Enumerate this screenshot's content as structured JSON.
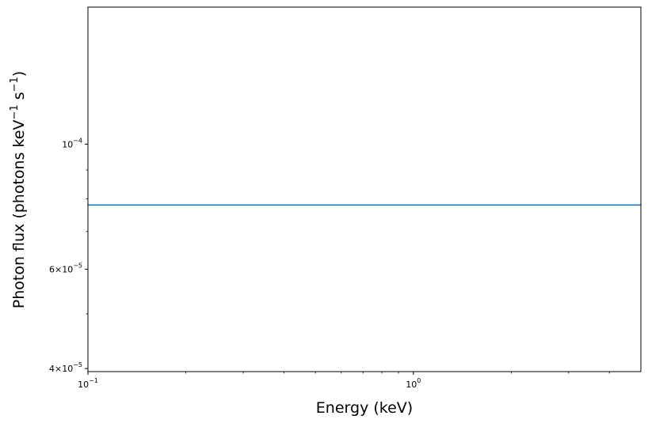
{
  "chart_data": {
    "type": "line",
    "title": "",
    "xlabel": "Energy (keV)",
    "ylabel": {
      "prefix": "Photon flux (photons keV",
      "exp1": "−1",
      "middle": " s",
      "exp2": "−1",
      "suffix": ")"
    },
    "xscale": "log",
    "yscale": "log",
    "xlim": [
      0.1,
      5.0
    ],
    "ylim": [
      3.95e-05,
      0.000175
    ],
    "x_major_ticks": [
      {
        "value": 0.1,
        "base": "10",
        "exp": "−1"
      },
      {
        "value": 1.0,
        "base": "10",
        "exp": "0"
      }
    ],
    "y_major_ticks": [
      {
        "value": 0.0001,
        "mantissa": "",
        "base": "10",
        "exp": "−4"
      },
      {
        "value": 6e-05,
        "mantissa": "6×",
        "base": "10",
        "exp": "−5"
      },
      {
        "value": 4e-05,
        "mantissa": "4×",
        "base": "10",
        "exp": "−5"
      }
    ],
    "x_minor_ticks": [
      0.2,
      0.3,
      0.4,
      0.5,
      0.6,
      0.7,
      0.8,
      0.9,
      2,
      3,
      4
    ],
    "y_minor_ticks": [
      5e-05,
      7e-05,
      8e-05,
      9e-05
    ],
    "series": [
      {
        "color": "#1f77b4",
        "x": [
          0.1,
          5.0
        ],
        "y": [
          7.8e-05,
          7.8e-05
        ]
      }
    ],
    "grid": false,
    "legend": "none"
  }
}
